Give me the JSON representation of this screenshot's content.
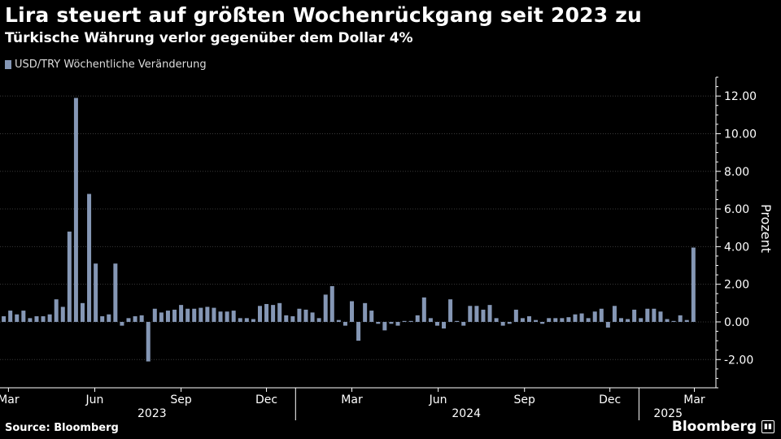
{
  "header": {
    "title": "Lira steuert auf größten Wochenrückgang seit 2023 zu",
    "subtitle": "Türkische Währung verlor gegenüber dem Dollar 4%"
  },
  "footer": {
    "source": "Source: Bloomberg",
    "brand": "Bloomberg"
  },
  "colors": {
    "bar": "#8597b5",
    "grid": "#3a3a3a",
    "background": "#000000"
  },
  "chart_data": {
    "type": "bar",
    "title": "Lira steuert auf größten Wochenrückgang seit 2023 zu",
    "subtitle": "Türkische Währung verlor gegenüber dem Dollar 4%",
    "ylabel": "Prozent",
    "ylim": [
      -3.5,
      13.0
    ],
    "yticks": [
      -2,
      0,
      2,
      4,
      6,
      8,
      10,
      12
    ],
    "ytick_labels": [
      "-2.00",
      "0.00",
      "2.00",
      "4.00",
      "6.00",
      "8.00",
      "10.00",
      "12.00"
    ],
    "x_start": "2023-02-20",
    "x_end": "2025-03-24",
    "grid": true,
    "legend": "top-left",
    "month_ticks": [
      {
        "label": "Mar",
        "date": "2023-03-01"
      },
      {
        "label": "Jun",
        "date": "2023-06-01"
      },
      {
        "label": "Sep",
        "date": "2023-09-01"
      },
      {
        "label": "Dec",
        "date": "2023-12-01"
      },
      {
        "label": "Mar",
        "date": "2024-03-01"
      },
      {
        "label": "Jun",
        "date": "2024-06-01"
      },
      {
        "label": "Sep",
        "date": "2024-09-01"
      },
      {
        "label": "Dec",
        "date": "2024-12-01"
      },
      {
        "label": "Mar",
        "date": "2025-03-01"
      }
    ],
    "year_labels": [
      {
        "label": "2023",
        "date": "2023-08-01"
      },
      {
        "label": "2024",
        "date": "2024-07-01"
      },
      {
        "label": "2025",
        "date": "2025-02-01"
      }
    ],
    "year_separators": [
      "2024-01-01",
      "2025-01-01"
    ],
    "series": [
      {
        "name": "USD/TRY  Wöchentliche Veränderung",
        "x": [
          "2023-02-24",
          "2023-03-03",
          "2023-03-10",
          "2023-03-17",
          "2023-03-24",
          "2023-03-31",
          "2023-04-07",
          "2023-04-14",
          "2023-04-21",
          "2023-04-28",
          "2023-05-05",
          "2023-05-12",
          "2023-05-19",
          "2023-05-26",
          "2023-06-02",
          "2023-06-09",
          "2023-06-16",
          "2023-06-23",
          "2023-06-30",
          "2023-07-07",
          "2023-07-14",
          "2023-07-21",
          "2023-07-28",
          "2023-08-04",
          "2023-08-11",
          "2023-08-18",
          "2023-08-25",
          "2023-09-01",
          "2023-09-08",
          "2023-09-15",
          "2023-09-22",
          "2023-09-29",
          "2023-10-06",
          "2023-10-13",
          "2023-10-20",
          "2023-10-27",
          "2023-11-03",
          "2023-11-10",
          "2023-11-17",
          "2023-11-24",
          "2023-12-01",
          "2023-12-08",
          "2023-12-15",
          "2023-12-22",
          "2023-12-29",
          "2024-01-05",
          "2024-01-12",
          "2024-01-19",
          "2024-01-26",
          "2024-02-02",
          "2024-02-09",
          "2024-02-16",
          "2024-02-23",
          "2024-03-01",
          "2024-03-08",
          "2024-03-15",
          "2024-03-22",
          "2024-03-29",
          "2024-04-05",
          "2024-04-12",
          "2024-04-19",
          "2024-04-26",
          "2024-05-03",
          "2024-05-10",
          "2024-05-17",
          "2024-05-24",
          "2024-05-31",
          "2024-06-07",
          "2024-06-14",
          "2024-06-21",
          "2024-06-28",
          "2024-07-05",
          "2024-07-12",
          "2024-07-19",
          "2024-07-26",
          "2024-08-02",
          "2024-08-09",
          "2024-08-16",
          "2024-08-23",
          "2024-08-30",
          "2024-09-06",
          "2024-09-13",
          "2024-09-20",
          "2024-09-27",
          "2024-10-04",
          "2024-10-11",
          "2024-10-18",
          "2024-10-25",
          "2024-11-01",
          "2024-11-08",
          "2024-11-15",
          "2024-11-22",
          "2024-11-29",
          "2024-12-06",
          "2024-12-13",
          "2024-12-20",
          "2024-12-27",
          "2025-01-03",
          "2025-01-10",
          "2025-01-17",
          "2025-01-24",
          "2025-01-31",
          "2025-02-07",
          "2025-02-14",
          "2025-02-21",
          "2025-02-28",
          "2025-03-07",
          "2025-03-14",
          "2025-03-21"
        ],
        "values": [
          0.3,
          0.6,
          0.4,
          0.6,
          0.2,
          0.3,
          0.3,
          0.4,
          1.2,
          0.8,
          4.8,
          11.9,
          1.0,
          6.8,
          3.1,
          0.3,
          0.4,
          3.1,
          -0.2,
          0.2,
          0.3,
          0.35,
          -2.1,
          0.7,
          0.5,
          0.6,
          0.65,
          0.9,
          0.7,
          0.7,
          0.75,
          0.8,
          0.75,
          0.55,
          0.55,
          0.6,
          0.2,
          0.2,
          0.15,
          0.85,
          0.95,
          0.9,
          1.0,
          0.35,
          0.3,
          0.7,
          0.65,
          0.5,
          0.2,
          1.45,
          1.9,
          0.1,
          -0.2,
          1.1,
          -1.0,
          1.0,
          0.6,
          -0.1,
          -0.45,
          -0.1,
          -0.2,
          0.05,
          0.05,
          0.35,
          1.3,
          0.2,
          -0.2,
          -0.35,
          1.2,
          0.05,
          -0.2,
          0.85,
          0.85,
          0.65,
          0.9,
          0.2,
          -0.2,
          -0.1,
          0.65,
          0.2,
          0.3,
          0.1,
          -0.1,
          0.2,
          0.2,
          0.2,
          0.25,
          0.4,
          0.45,
          0.2,
          0.55,
          0.7,
          -0.3,
          0.85,
          0.2,
          0.15,
          0.65,
          0.2,
          0.7,
          0.7,
          0.55,
          0.15,
          0.05,
          0.35,
          0.1,
          3.95,
          0.0,
          0.0,
          0.0
        ]
      }
    ]
  }
}
